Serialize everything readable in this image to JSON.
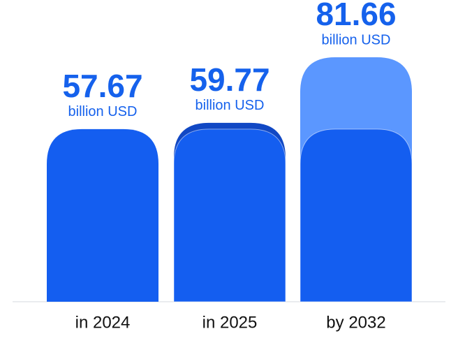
{
  "chart_data": {
    "type": "bar",
    "categories": [
      "in 2024",
      "in 2025",
      "by 2032"
    ],
    "values": [
      57.67,
      59.77,
      81.66
    ],
    "unit": "billion USD",
    "colors": [
      "#145ef0",
      "#1148c4",
      "#5b97ff"
    ],
    "label_color": "#1561ec"
  }
}
